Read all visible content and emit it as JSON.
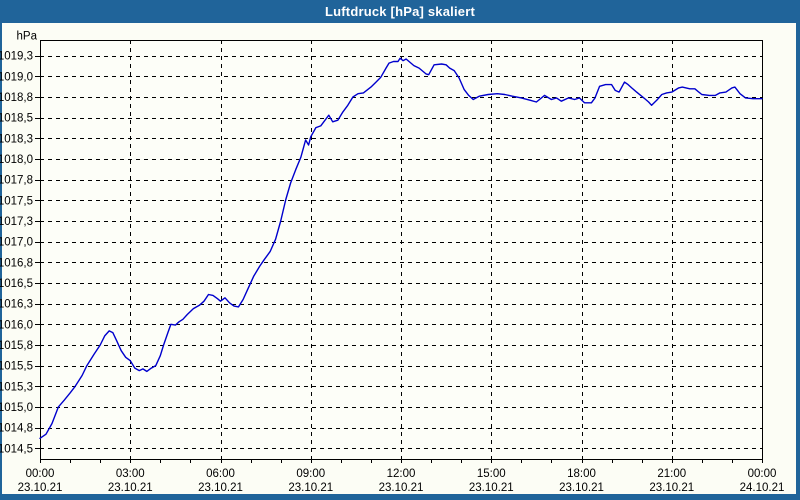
{
  "window": {
    "title": "Luftdruck [hPa] skaliert"
  },
  "colors": {
    "titlebar_bg": "#20649a",
    "titlebar_text": "#ffffff",
    "frame": "#20649a",
    "content_bg": "#fcfdf5",
    "plot_bg": "#fdfef8",
    "grid": "#000000",
    "axis": "#000000",
    "label": "#000000",
    "line": "#0000cd"
  },
  "chart_data": {
    "type": "line",
    "title": "Luftdruck [hPa] skaliert",
    "ylabel": "hPa",
    "xlabel": "",
    "legend": "none",
    "grid": "dashed",
    "ylim": [
      1014.37,
      1019.44
    ],
    "xlim_hours": [
      0,
      24
    ],
    "minor_x_tick_hours": 1,
    "y_ticks": [
      {
        "value": 1019.25,
        "label": "1019,3"
      },
      {
        "value": 1019.0,
        "label": "1019,0"
      },
      {
        "value": 1018.75,
        "label": "1018,8"
      },
      {
        "value": 1018.5,
        "label": "1018,5"
      },
      {
        "value": 1018.25,
        "label": "1018,3"
      },
      {
        "value": 1018.0,
        "label": "1018,0"
      },
      {
        "value": 1017.75,
        "label": "1017,8"
      },
      {
        "value": 1017.5,
        "label": "1017,5"
      },
      {
        "value": 1017.25,
        "label": "1017,3"
      },
      {
        "value": 1017.0,
        "label": "1017,0"
      },
      {
        "value": 1016.75,
        "label": "1016,8"
      },
      {
        "value": 1016.5,
        "label": "1016,5"
      },
      {
        "value": 1016.25,
        "label": "1016,3"
      },
      {
        "value": 1016.0,
        "label": "1016,0"
      },
      {
        "value": 1015.75,
        "label": "1015,8"
      },
      {
        "value": 1015.5,
        "label": "1015,5"
      },
      {
        "value": 1015.25,
        "label": "1015,3"
      },
      {
        "value": 1015.0,
        "label": "1015,0"
      },
      {
        "value": 1014.75,
        "label": "1014,8"
      },
      {
        "value": 1014.5,
        "label": "1014,5"
      }
    ],
    "x_ticks": [
      {
        "hour": 0,
        "time": "00:00",
        "date": "23.10.21"
      },
      {
        "hour": 3,
        "time": "03:00",
        "date": "23.10.21"
      },
      {
        "hour": 6,
        "time": "06:00",
        "date": "23.10.21"
      },
      {
        "hour": 9,
        "time": "09:00",
        "date": "23.10.21"
      },
      {
        "hour": 12,
        "time": "12:00",
        "date": "23.10.21"
      },
      {
        "hour": 15,
        "time": "15:00",
        "date": "23.10.21"
      },
      {
        "hour": 18,
        "time": "18:00",
        "date": "23.10.21"
      },
      {
        "hour": 21,
        "time": "21:00",
        "date": "23.10.21"
      },
      {
        "hour": 24,
        "time": "00:00",
        "date": "24.10.21"
      }
    ],
    "series": [
      {
        "name": "Luftdruck",
        "unit": "hPa",
        "color": "#0000cd",
        "points": [
          [
            0.0,
            1014.62
          ],
          [
            0.2,
            1014.67
          ],
          [
            0.4,
            1014.8
          ],
          [
            0.61,
            1015.0
          ],
          [
            0.8,
            1015.08
          ],
          [
            1.0,
            1015.17
          ],
          [
            1.17,
            1015.25
          ],
          [
            1.4,
            1015.38
          ],
          [
            1.56,
            1015.5
          ],
          [
            1.8,
            1015.64
          ],
          [
            2.0,
            1015.75
          ],
          [
            2.15,
            1015.86
          ],
          [
            2.3,
            1015.92
          ],
          [
            2.42,
            1015.9
          ],
          [
            2.55,
            1015.8
          ],
          [
            2.7,
            1015.68
          ],
          [
            2.85,
            1015.6
          ],
          [
            3.0,
            1015.56
          ],
          [
            3.15,
            1015.47
          ],
          [
            3.3,
            1015.44
          ],
          [
            3.42,
            1015.46
          ],
          [
            3.55,
            1015.43
          ],
          [
            3.7,
            1015.47
          ],
          [
            3.85,
            1015.5
          ],
          [
            4.0,
            1015.62
          ],
          [
            4.11,
            1015.75
          ],
          [
            4.25,
            1015.9
          ],
          [
            4.35,
            1016.0
          ],
          [
            4.5,
            1015.99
          ],
          [
            4.62,
            1016.03
          ],
          [
            4.75,
            1016.06
          ],
          [
            4.9,
            1016.12
          ],
          [
            5.1,
            1016.19
          ],
          [
            5.3,
            1016.23
          ],
          [
            5.45,
            1016.28
          ],
          [
            5.6,
            1016.36
          ],
          [
            5.75,
            1016.35
          ],
          [
            5.9,
            1016.31
          ],
          [
            6.0,
            1016.28
          ],
          [
            6.15,
            1016.32
          ],
          [
            6.3,
            1016.26
          ],
          [
            6.45,
            1016.22
          ],
          [
            6.6,
            1016.21
          ],
          [
            6.75,
            1016.3
          ],
          [
            6.9,
            1016.42
          ],
          [
            7.1,
            1016.58
          ],
          [
            7.3,
            1016.7
          ],
          [
            7.45,
            1016.78
          ],
          [
            7.65,
            1016.88
          ],
          [
            7.83,
            1017.03
          ],
          [
            8.0,
            1017.25
          ],
          [
            8.17,
            1017.51
          ],
          [
            8.33,
            1017.71
          ],
          [
            8.5,
            1017.87
          ],
          [
            8.67,
            1018.02
          ],
          [
            8.77,
            1018.15
          ],
          [
            8.83,
            1018.23
          ],
          [
            8.93,
            1018.17
          ],
          [
            9.0,
            1018.27
          ],
          [
            9.17,
            1018.38
          ],
          [
            9.33,
            1018.4
          ],
          [
            9.6,
            1018.53
          ],
          [
            9.73,
            1018.45
          ],
          [
            9.9,
            1018.47
          ],
          [
            10.07,
            1018.57
          ],
          [
            10.23,
            1018.65
          ],
          [
            10.4,
            1018.75
          ],
          [
            10.57,
            1018.79
          ],
          [
            10.75,
            1018.8
          ],
          [
            11.0,
            1018.87
          ],
          [
            11.17,
            1018.93
          ],
          [
            11.33,
            1018.99
          ],
          [
            11.5,
            1019.1
          ],
          [
            11.6,
            1019.16
          ],
          [
            11.75,
            1019.18
          ],
          [
            11.9,
            1019.18
          ],
          [
            11.97,
            1019.22
          ],
          [
            12.07,
            1019.19
          ],
          [
            12.17,
            1019.21
          ],
          [
            12.43,
            1019.13
          ],
          [
            12.6,
            1019.1
          ],
          [
            12.83,
            1019.03
          ],
          [
            12.92,
            1019.02
          ],
          [
            13.1,
            1019.14
          ],
          [
            13.35,
            1019.15
          ],
          [
            13.5,
            1019.14
          ],
          [
            13.62,
            1019.1
          ],
          [
            13.77,
            1019.07
          ],
          [
            13.93,
            1018.98
          ],
          [
            14.1,
            1018.84
          ],
          [
            14.25,
            1018.77
          ],
          [
            14.4,
            1018.72
          ],
          [
            14.6,
            1018.76
          ],
          [
            14.9,
            1018.78
          ],
          [
            15.2,
            1018.79
          ],
          [
            15.45,
            1018.78
          ],
          [
            15.7,
            1018.76
          ],
          [
            16.0,
            1018.74
          ],
          [
            16.3,
            1018.71
          ],
          [
            16.5,
            1018.69
          ],
          [
            16.77,
            1018.77
          ],
          [
            17.0,
            1018.72
          ],
          [
            17.17,
            1018.74
          ],
          [
            17.33,
            1018.7
          ],
          [
            17.57,
            1018.74
          ],
          [
            17.77,
            1018.72
          ],
          [
            17.93,
            1018.74
          ],
          [
            18.1,
            1018.68
          ],
          [
            18.33,
            1018.68
          ],
          [
            18.45,
            1018.74
          ],
          [
            18.6,
            1018.88
          ],
          [
            18.8,
            1018.9
          ],
          [
            19.0,
            1018.9
          ],
          [
            19.12,
            1018.83
          ],
          [
            19.25,
            1018.81
          ],
          [
            19.43,
            1018.93
          ],
          [
            19.55,
            1018.9
          ],
          [
            19.67,
            1018.86
          ],
          [
            19.83,
            1018.81
          ],
          [
            20.07,
            1018.74
          ],
          [
            20.23,
            1018.69
          ],
          [
            20.33,
            1018.65
          ],
          [
            20.5,
            1018.71
          ],
          [
            20.67,
            1018.78
          ],
          [
            20.83,
            1018.8
          ],
          [
            21.0,
            1018.81
          ],
          [
            21.23,
            1018.86
          ],
          [
            21.35,
            1018.87
          ],
          [
            21.6,
            1018.85
          ],
          [
            21.77,
            1018.85
          ],
          [
            21.9,
            1018.81
          ],
          [
            22.0,
            1018.78
          ],
          [
            22.25,
            1018.77
          ],
          [
            22.45,
            1018.77
          ],
          [
            22.6,
            1018.8
          ],
          [
            22.8,
            1018.81
          ],
          [
            23.0,
            1018.86
          ],
          [
            23.1,
            1018.87
          ],
          [
            23.27,
            1018.79
          ],
          [
            23.45,
            1018.74
          ],
          [
            23.7,
            1018.73
          ],
          [
            24.0,
            1018.73
          ]
        ]
      }
    ]
  }
}
